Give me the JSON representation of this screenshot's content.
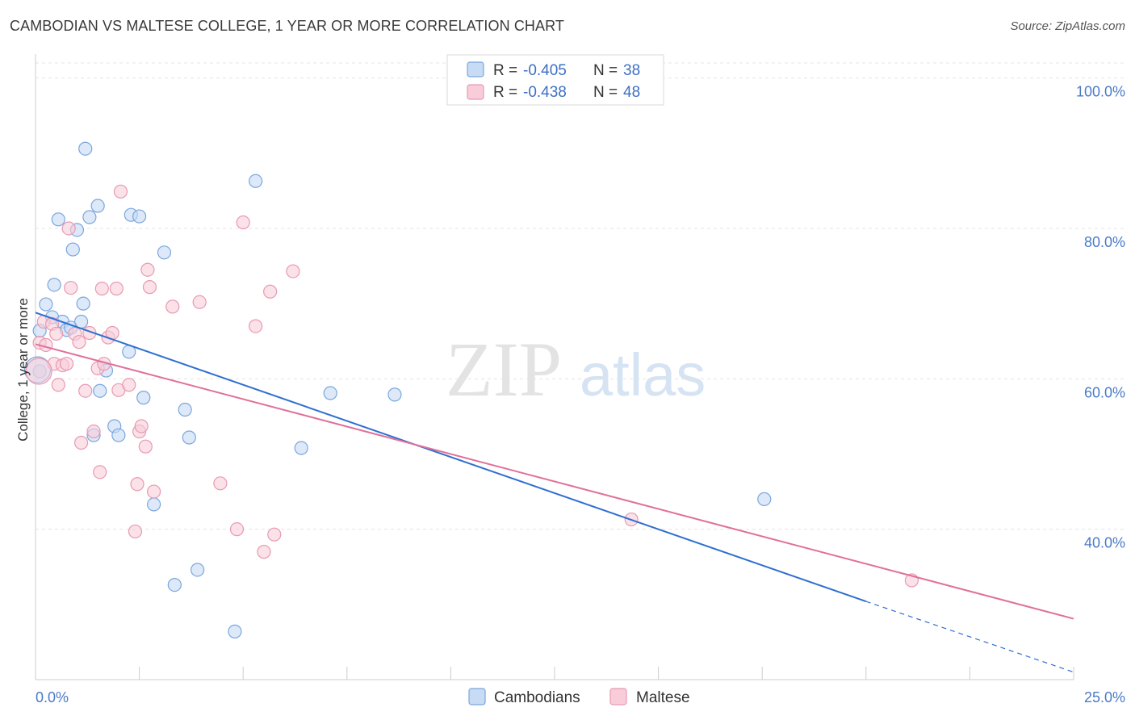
{
  "title": "CAMBODIAN VS MALTESE COLLEGE, 1 YEAR OR MORE CORRELATION CHART",
  "source": "Source: ZipAtlas.com",
  "watermark": {
    "zip": "ZIP",
    "atlas": "atlas"
  },
  "colors": {
    "cambodians_fill": "#c7dbf5",
    "cambodians_stroke": "#7aa6dd",
    "cambodians_line": "#2f6fd0",
    "maltese_fill": "#f8cdd9",
    "maltese_stroke": "#e89ab2",
    "maltese_line": "#e0709a",
    "axis_text": "#4a7bc8"
  },
  "legend": {
    "rows": [
      {
        "r_label": "R =",
        "r_value": "-0.405",
        "n_label": "N =",
        "n_value": "38"
      },
      {
        "r_label": "R =",
        "r_value": "-0.438",
        "n_label": "N =",
        "n_value": "48"
      }
    ]
  },
  "bottom_legend": [
    "Cambodians",
    "Maltese"
  ],
  "chart_data": {
    "type": "scatter",
    "title": "CAMBODIAN VS MALTESE COLLEGE, 1 YEAR OR MORE CORRELATION CHART",
    "xlabel": "",
    "ylabel": "College, 1 year or more",
    "xlim": [
      0,
      25
    ],
    "ylim": [
      20,
      102
    ],
    "x_tick_labels": [
      "0.0%",
      "25.0%"
    ],
    "y_ticks": [
      40,
      60,
      80,
      100
    ],
    "y_tick_labels": [
      "40.0%",
      "60.0%",
      "80.0%",
      "100.0%"
    ],
    "grid": true,
    "legend_position": "top-center",
    "series": [
      {
        "name": "Cambodians",
        "r": -0.405,
        "n": 38,
        "trend": {
          "x0": 0.0,
          "y0": 68.8,
          "x1": 20.0,
          "y1": 30.4,
          "dashed_to_x": 25.0,
          "dashed_to_y": 21.0
        },
        "points": [
          [
            0.1,
            66.4
          ],
          [
            0.1,
            61.0
          ],
          [
            0.25,
            69.9
          ],
          [
            0.4,
            68.2
          ],
          [
            0.45,
            72.5
          ],
          [
            0.55,
            81.2
          ],
          [
            0.65,
            67.6
          ],
          [
            0.75,
            66.5
          ],
          [
            0.85,
            66.8
          ],
          [
            0.9,
            77.2
          ],
          [
            1.0,
            79.8
          ],
          [
            1.1,
            67.6
          ],
          [
            1.15,
            70.0
          ],
          [
            1.2,
            90.6
          ],
          [
            1.3,
            81.5
          ],
          [
            1.4,
            52.5
          ],
          [
            1.5,
            83.0
          ],
          [
            1.55,
            58.4
          ],
          [
            1.7,
            61.1
          ],
          [
            1.9,
            53.7
          ],
          [
            2.0,
            52.5
          ],
          [
            2.25,
            63.6
          ],
          [
            2.3,
            81.8
          ],
          [
            2.5,
            81.6
          ],
          [
            2.6,
            57.5
          ],
          [
            2.85,
            43.3
          ],
          [
            3.1,
            76.8
          ],
          [
            3.35,
            32.6
          ],
          [
            3.6,
            55.9
          ],
          [
            3.7,
            52.2
          ],
          [
            3.9,
            34.6
          ],
          [
            4.8,
            26.4
          ],
          [
            5.3,
            86.3
          ],
          [
            6.4,
            50.8
          ],
          [
            7.1,
            58.1
          ],
          [
            8.65,
            57.9
          ],
          [
            17.55,
            44.0
          ],
          [
            0.05,
            61.2
          ]
        ]
      },
      {
        "name": "Maltese",
        "r": -0.438,
        "n": 48,
        "trend": {
          "x0": 0.0,
          "y0": 64.6,
          "x1": 25.0,
          "y1": 28.1
        },
        "points": [
          [
            0.1,
            64.8
          ],
          [
            0.2,
            67.6
          ],
          [
            0.25,
            64.5
          ],
          [
            0.4,
            67.3
          ],
          [
            0.45,
            62.0
          ],
          [
            0.5,
            66.0
          ],
          [
            0.55,
            59.2
          ],
          [
            0.65,
            61.8
          ],
          [
            0.75,
            62.0
          ],
          [
            0.8,
            80.0
          ],
          [
            0.85,
            72.1
          ],
          [
            0.95,
            66.0
          ],
          [
            1.05,
            64.9
          ],
          [
            1.1,
            51.5
          ],
          [
            1.2,
            58.4
          ],
          [
            1.3,
            66.1
          ],
          [
            1.4,
            53.0
          ],
          [
            1.5,
            61.4
          ],
          [
            1.55,
            47.6
          ],
          [
            1.6,
            72.0
          ],
          [
            1.65,
            62.0
          ],
          [
            1.75,
            65.5
          ],
          [
            1.85,
            66.1
          ],
          [
            1.95,
            72.0
          ],
          [
            2.0,
            58.5
          ],
          [
            2.05,
            84.9
          ],
          [
            2.25,
            59.2
          ],
          [
            2.4,
            39.7
          ],
          [
            2.45,
            46.0
          ],
          [
            2.5,
            53.0
          ],
          [
            2.55,
            53.7
          ],
          [
            2.65,
            51.0
          ],
          [
            2.7,
            74.5
          ],
          [
            2.75,
            72.2
          ],
          [
            2.85,
            45.0
          ],
          [
            3.3,
            69.6
          ],
          [
            3.95,
            70.2
          ],
          [
            4.45,
            46.1
          ],
          [
            4.85,
            40.0
          ],
          [
            5.0,
            80.8
          ],
          [
            5.3,
            67.0
          ],
          [
            5.5,
            37.0
          ],
          [
            5.65,
            71.6
          ],
          [
            5.75,
            39.3
          ],
          [
            6.2,
            74.3
          ],
          [
            14.35,
            41.3
          ],
          [
            21.1,
            33.2
          ],
          [
            0.08,
            61.0
          ]
        ]
      }
    ]
  }
}
